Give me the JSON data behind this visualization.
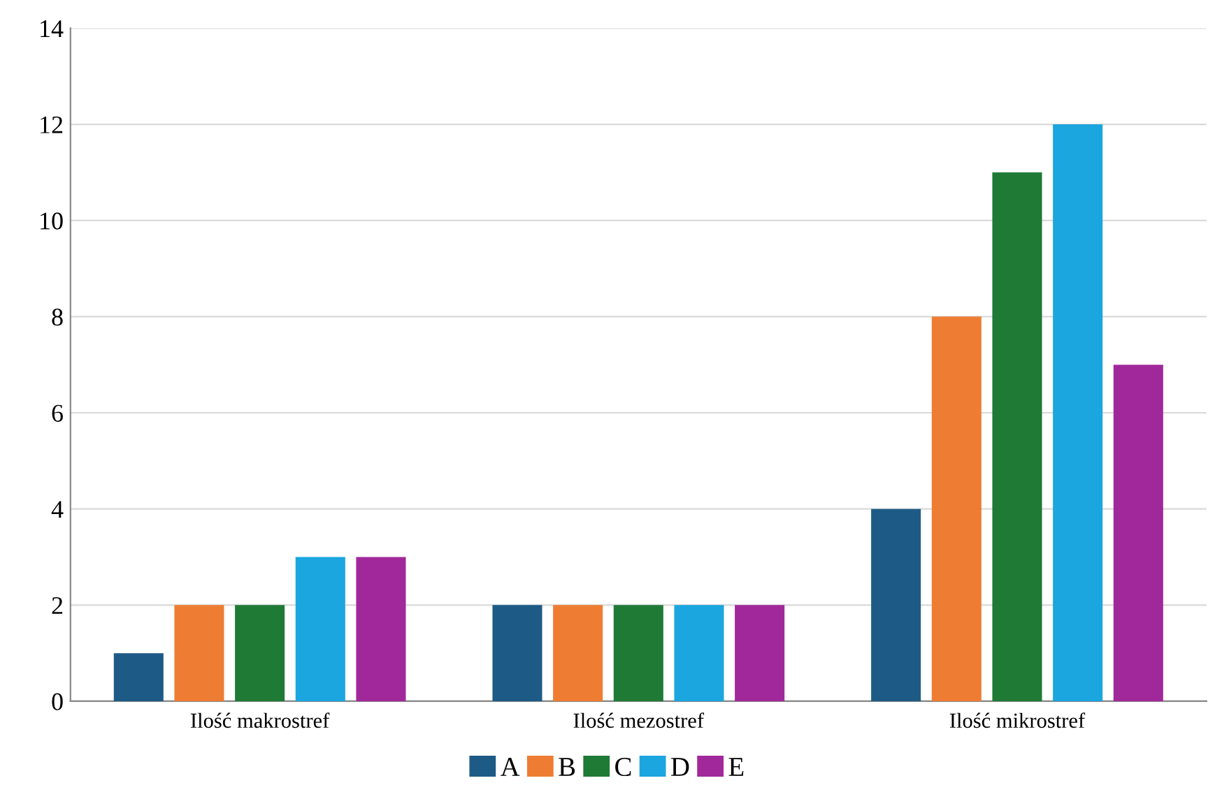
{
  "chart_data": {
    "type": "bar",
    "categories": [
      "Ilość makrostref",
      "Ilość mezostref",
      "Ilość mikrostref"
    ],
    "series": [
      {
        "name": "A",
        "color": "#1d5b86",
        "values": [
          1,
          2,
          4
        ]
      },
      {
        "name": "B",
        "color": "#ee7d33",
        "values": [
          2,
          2,
          8
        ]
      },
      {
        "name": "C",
        "color": "#1f7a36",
        "values": [
          2,
          2,
          11
        ]
      },
      {
        "name": "D",
        "color": "#1ba6df",
        "values": [
          3,
          2,
          12
        ]
      },
      {
        "name": "E",
        "color": "#a1289b",
        "values": [
          3,
          2,
          7
        ]
      }
    ],
    "ylim": [
      0,
      14
    ],
    "yticks": [
      0,
      2,
      4,
      6,
      8,
      10,
      12,
      14
    ],
    "grid": "y",
    "legend": "bottom"
  }
}
